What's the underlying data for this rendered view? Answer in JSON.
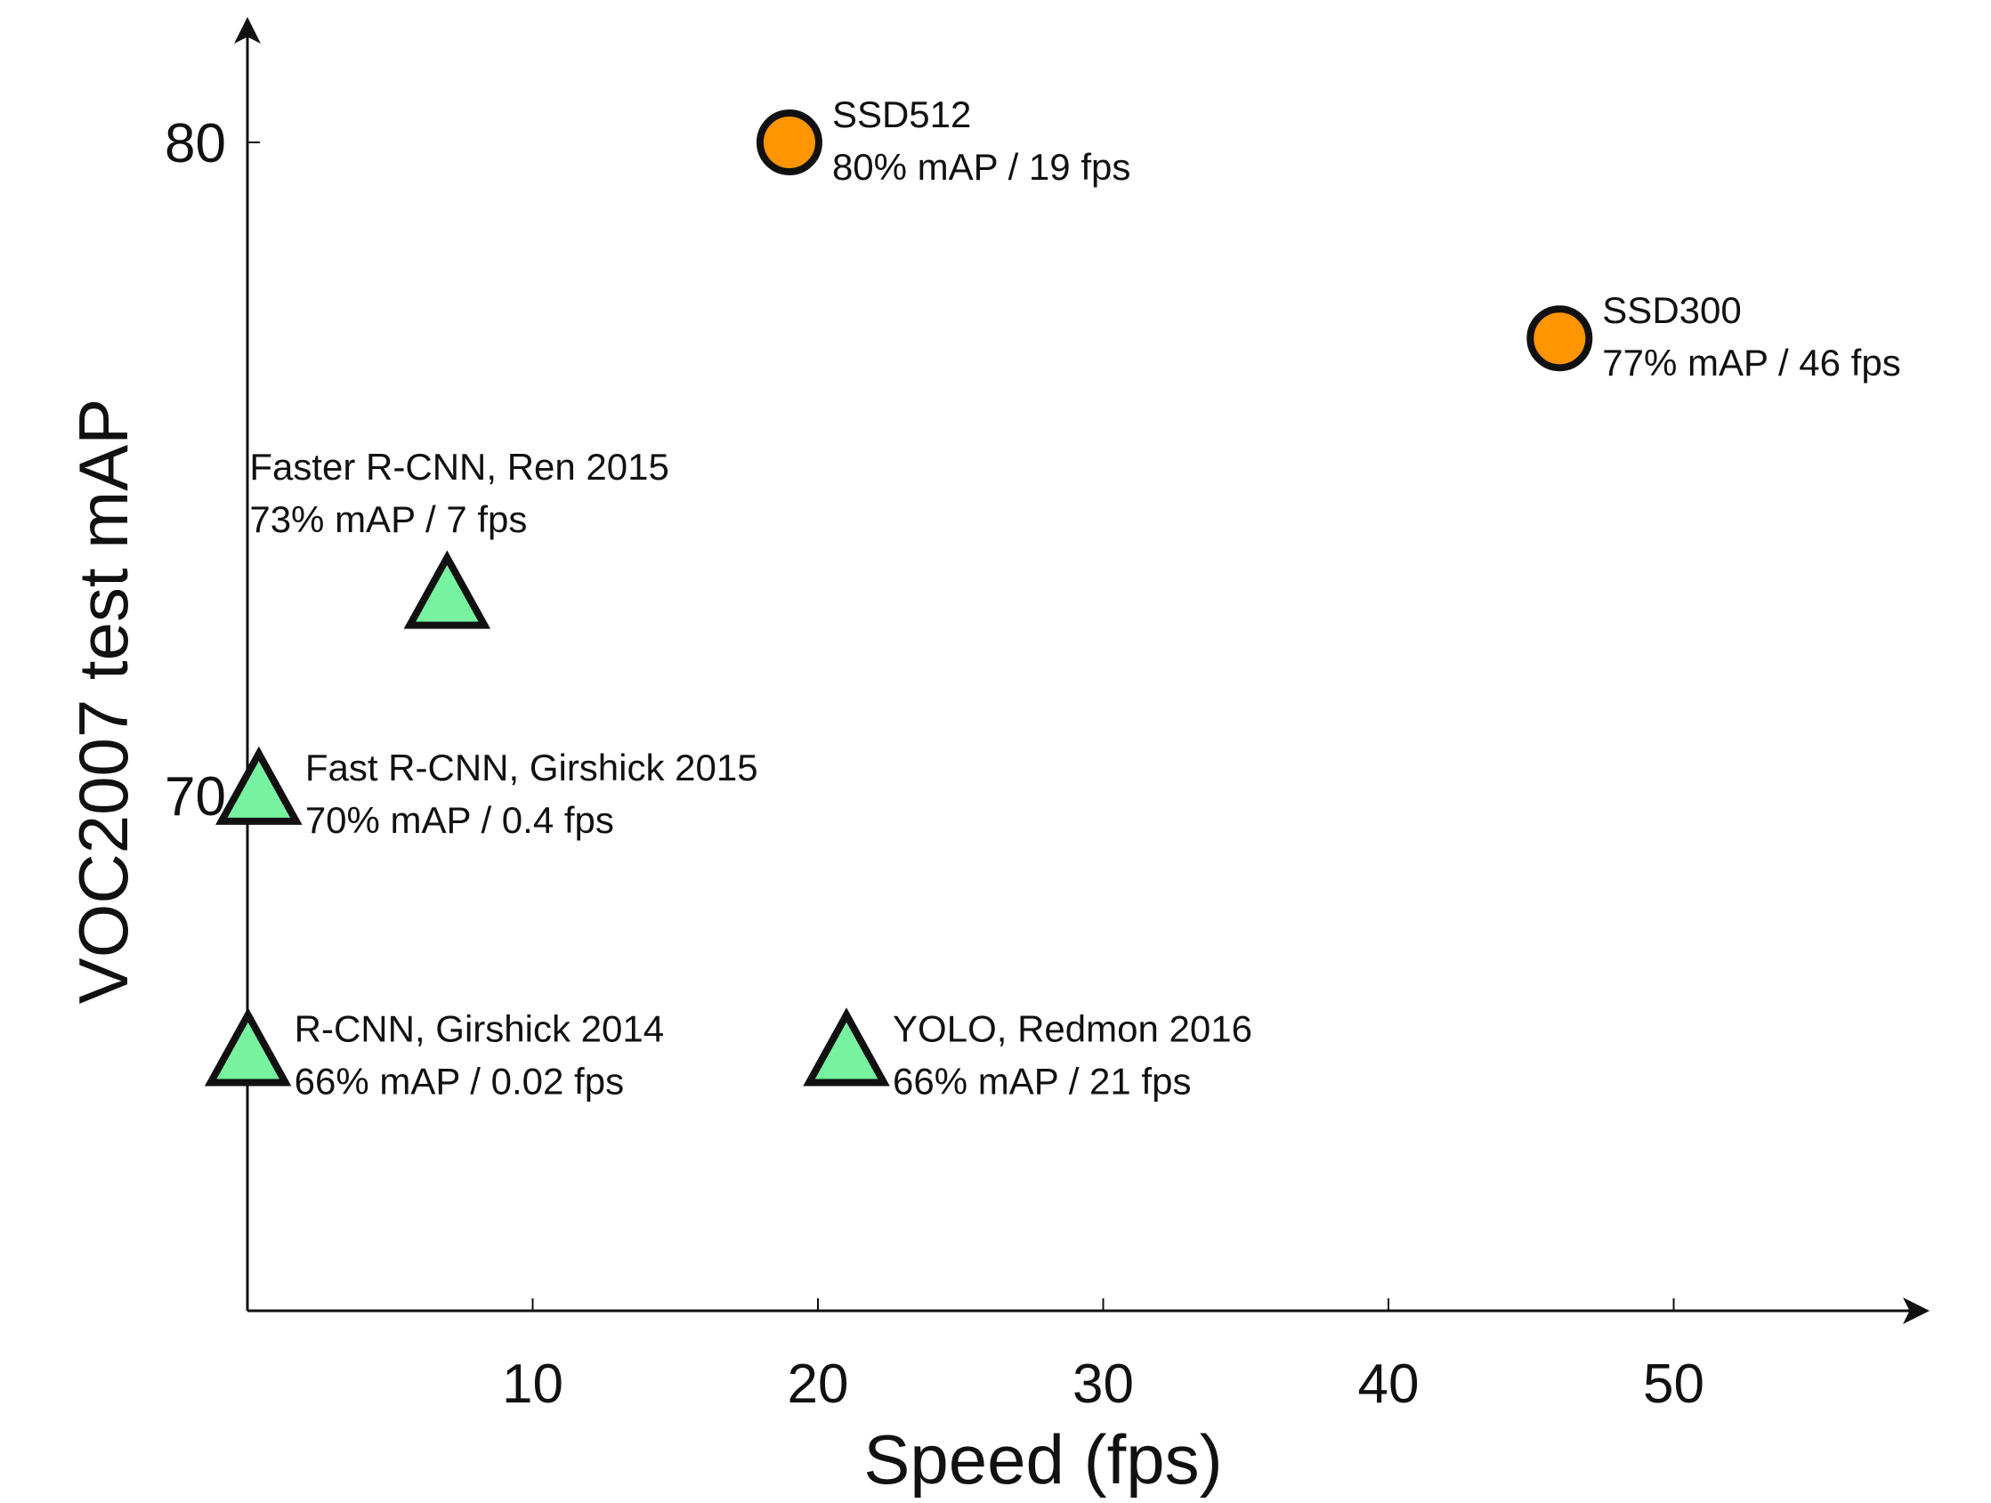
{
  "chart_data": {
    "type": "scatter",
    "title": "",
    "xlabel": "Speed (fps)",
    "ylabel": "VOC2007 test mAP",
    "xlim": [
      0,
      56
    ],
    "ylim": [
      62,
      82
    ],
    "xticks": [
      10,
      20,
      30,
      40,
      50
    ],
    "yticks": [
      70,
      80
    ],
    "grid": false,
    "legend": "none",
    "points": [
      {
        "name": "SSD512",
        "detail": "80% mAP / 19 fps",
        "x": 19,
        "y": 80,
        "marker": "circle",
        "color": "#ff9500",
        "label_pos": "right"
      },
      {
        "name": "SSD300",
        "detail": "77% mAP / 46 fps",
        "x": 46,
        "y": 77,
        "marker": "circle",
        "color": "#ff9500",
        "label_pos": "right"
      },
      {
        "name": "Faster R-CNN, Ren 2015",
        "detail": "73% mAP / 7 fps",
        "x": 7,
        "y": 73,
        "marker": "triangle",
        "color": "#77f2a0",
        "label_pos": "above"
      },
      {
        "name": "Fast R-CNN, Girshick 2015",
        "detail": "70% mAP / 0.4 fps",
        "x": 0.4,
        "y": 70,
        "marker": "triangle",
        "color": "#77f2a0",
        "label_pos": "right"
      },
      {
        "name": "R-CNN, Girshick 2014",
        "detail": "66% mAP / 0.02 fps",
        "x": 0.02,
        "y": 66,
        "marker": "triangle",
        "color": "#77f2a0",
        "label_pos": "right"
      },
      {
        "name": "YOLO, Redmon 2016",
        "detail": "66% mAP / 21 fps",
        "x": 21,
        "y": 66,
        "marker": "triangle",
        "color": "#77f2a0",
        "label_pos": "right"
      }
    ]
  }
}
